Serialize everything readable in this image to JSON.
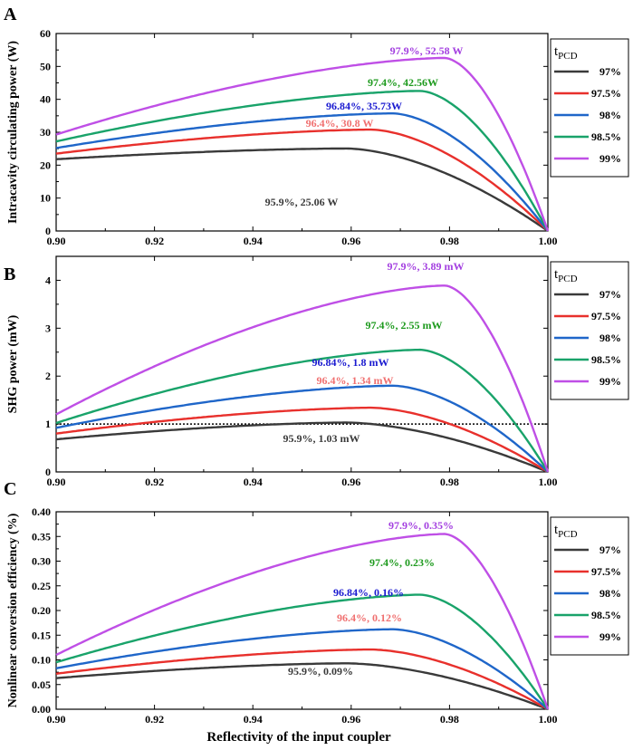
{
  "figure": {
    "shared_xlabel": "Reflectivity of the input coupler",
    "legend_title_main": "t",
    "legend_title_sub": "PCD"
  },
  "colors": {
    "97%": "#3a3a3a",
    "97.5%": "#e8302c",
    "98%": "#1f66c9",
    "98.5%": "#19a36a",
    "99%": "#bf4fe6",
    "peak_label_97.5%": "#f07070",
    "peak_label_98%": "#1a1ad0",
    "peak_label_98.5%": "#1d9a1d",
    "peak_label_99%": "#a33fe0"
  },
  "chart_data": [
    {
      "panel": "A",
      "type": "line",
      "ylabel": "Intracavity circulating power (W)",
      "xlabel": "Reflectivity of the input coupler",
      "xlim": [
        0.9,
        1.0
      ],
      "ylim": [
        0,
        60
      ],
      "xticks": [
        "0.90",
        "0.92",
        "0.94",
        "0.96",
        "0.98",
        "1.00"
      ],
      "yticks": [
        "0",
        "10",
        "20",
        "30",
        "40",
        "50",
        "60"
      ],
      "legend_title": "tPCD",
      "series": [
        {
          "name": "97%",
          "start": 21.8,
          "peak_x": 0.959,
          "peak_y": 25.06,
          "label": "95.9%,  25.06 W"
        },
        {
          "name": "97.5%",
          "start": 23.5,
          "peak_x": 0.964,
          "peak_y": 30.8,
          "label": "96.4%,  30.8 W"
        },
        {
          "name": "98%",
          "start": 25.2,
          "peak_x": 0.9684,
          "peak_y": 35.73,
          "label": "96.84%,  35.73W"
        },
        {
          "name": "98.5%",
          "start": 27.2,
          "peak_x": 0.974,
          "peak_y": 42.56,
          "label": "97.4%,  42.56W"
        },
        {
          "name": "99%",
          "start": 29.3,
          "peak_x": 0.979,
          "peak_y": 52.58,
          "label": "97.9%, 52.58 W"
        }
      ]
    },
    {
      "panel": "B",
      "type": "line",
      "ylabel": "SHG power (mW)",
      "xlabel": "Reflectivity of the input coupler",
      "xlim": [
        0.9,
        1.0
      ],
      "ylim": [
        0,
        4.5
      ],
      "xticks": [
        "0.90",
        "0.92",
        "0.94",
        "0.96",
        "0.98",
        "1.00"
      ],
      "yticks": [
        "0",
        "1",
        "2",
        "3",
        "4"
      ],
      "legend_title": "tPCD",
      "reference_line_y": 1.0,
      "series": [
        {
          "name": "97%",
          "start": 0.68,
          "peak_x": 0.959,
          "peak_y": 1.03,
          "label": "95.9%, 1.03 mW"
        },
        {
          "name": "97.5%",
          "start": 0.8,
          "peak_x": 0.964,
          "peak_y": 1.34,
          "label": "96.4%,  1.34 mW"
        },
        {
          "name": "98%",
          "start": 0.92,
          "peak_x": 0.9684,
          "peak_y": 1.8,
          "label": "96.84%, 1.8 mW"
        },
        {
          "name": "98.5%",
          "start": 1.02,
          "peak_x": 0.974,
          "peak_y": 2.55,
          "label": "97.4%, 2.55 mW"
        },
        {
          "name": "99%",
          "start": 1.2,
          "peak_x": 0.979,
          "peak_y": 3.89,
          "label": "97.9%, 3.89 mW"
        }
      ]
    },
    {
      "panel": "C",
      "type": "line",
      "ylabel": "Nonlinear conversion efficiency (%)",
      "xlabel": "Reflectivity of the input coupler",
      "xlim": [
        0.9,
        1.0
      ],
      "ylim": [
        0,
        0.4
      ],
      "xticks": [
        "0.90",
        "0.92",
        "0.94",
        "0.96",
        "0.98",
        "1.00"
      ],
      "yticks": [
        "0.00",
        "0.05",
        "0.10",
        "0.15",
        "0.20",
        "0.25",
        "0.30",
        "0.35",
        "0.40"
      ],
      "legend_title": "tPCD",
      "series": [
        {
          "name": "97%",
          "start": 0.063,
          "peak_x": 0.959,
          "peak_y": 0.093,
          "label": "95.9%, 0.09%"
        },
        {
          "name": "97.5%",
          "start": 0.072,
          "peak_x": 0.964,
          "peak_y": 0.121,
          "label": "96.4%, 0.12%"
        },
        {
          "name": "98%",
          "start": 0.083,
          "peak_x": 0.9684,
          "peak_y": 0.162,
          "label": "96.84%, 0.16%"
        },
        {
          "name": "98.5%",
          "start": 0.095,
          "peak_x": 0.974,
          "peak_y": 0.232,
          "label": "97.4%, 0.23%"
        },
        {
          "name": "99%",
          "start": 0.11,
          "peak_x": 0.979,
          "peak_y": 0.355,
          "label": "97.9%, 0.35%"
        }
      ]
    }
  ]
}
